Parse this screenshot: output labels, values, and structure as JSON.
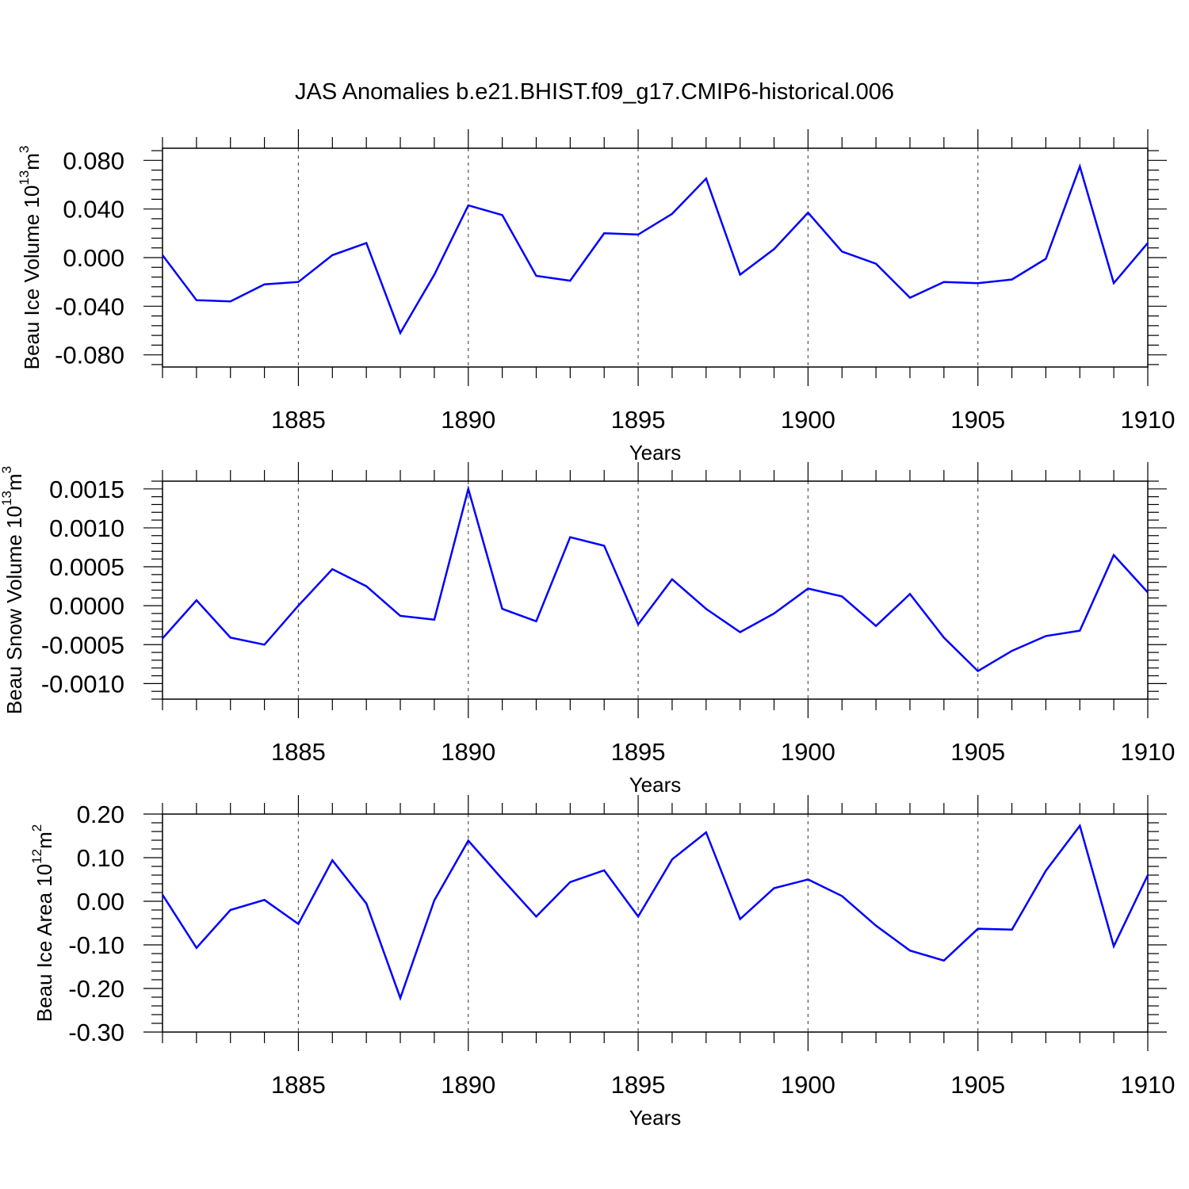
{
  "title": "JAS Anomalies b.e21.BHIST.f09_g17.CMIP6-historical.006",
  "colors": {
    "line": "#0000ff",
    "axis": "#000000",
    "grid": "#555555"
  },
  "chart_data": [
    {
      "type": "line",
      "ylabel": "Beau Ice Volume 10",
      "ylabel_exp": "13",
      "ylabel_unit": "m",
      "ylabel_unit_exp": "3",
      "xlabel": "Years",
      "xlim": [
        1881,
        1910
      ],
      "ylim": [
        -0.09,
        0.09
      ],
      "yticks": [
        -0.08,
        -0.04,
        0.0,
        0.04,
        0.08
      ],
      "ytick_labels": [
        "-0.080",
        "-0.040",
        "0.000",
        "0.040",
        "0.080"
      ],
      "yminor_step": 0.008,
      "xticks": [
        1885,
        1890,
        1895,
        1900,
        1905,
        1910
      ],
      "xtick_labels": [
        "1885",
        "1890",
        "1895",
        "1900",
        "1905",
        "1910"
      ],
      "x": [
        1881,
        1882,
        1883,
        1884,
        1885,
        1886,
        1887,
        1888,
        1889,
        1890,
        1891,
        1892,
        1893,
        1894,
        1895,
        1896,
        1897,
        1898,
        1899,
        1900,
        1901,
        1902,
        1903,
        1904,
        1905,
        1906,
        1907,
        1908,
        1909,
        1910
      ],
      "series": [
        {
          "name": "Beau Ice Volume",
          "values": [
            0.002,
            -0.035,
            -0.036,
            -0.022,
            -0.02,
            0.002,
            0.012,
            -0.062,
            -0.014,
            0.043,
            0.035,
            -0.015,
            -0.019,
            0.02,
            0.019,
            0.036,
            0.065,
            -0.014,
            0.007,
            0.037,
            0.005,
            -0.005,
            -0.033,
            -0.02,
            -0.021,
            -0.018,
            -0.001,
            0.075,
            -0.021,
            0.012
          ]
        }
      ]
    },
    {
      "type": "line",
      "ylabel": "Beau Snow Volume 10",
      "ylabel_exp": "13",
      "ylabel_unit": "m",
      "ylabel_unit_exp": "3",
      "xlabel": "Years",
      "xlim": [
        1881,
        1910
      ],
      "ylim": [
        -0.0012,
        0.0016
      ],
      "yticks": [
        -0.001,
        -0.0005,
        0.0,
        0.0005,
        0.001,
        0.0015
      ],
      "ytick_labels": [
        "-0.0010",
        "-0.0005",
        "0.0000",
        "0.0005",
        "0.0010",
        "0.0015"
      ],
      "yminor_step": 0.0001,
      "xticks": [
        1885,
        1890,
        1895,
        1900,
        1905,
        1910
      ],
      "xtick_labels": [
        "1885",
        "1890",
        "1895",
        "1900",
        "1905",
        "1910"
      ],
      "x": [
        1881,
        1882,
        1883,
        1884,
        1885,
        1886,
        1887,
        1888,
        1889,
        1890,
        1891,
        1892,
        1893,
        1894,
        1895,
        1896,
        1897,
        1898,
        1899,
        1900,
        1901,
        1902,
        1903,
        1904,
        1905,
        1906,
        1907,
        1908,
        1909,
        1910
      ],
      "series": [
        {
          "name": "Beau Snow Volume",
          "values": [
            -0.00042,
            7e-05,
            -0.00041,
            -0.0005,
            0.0,
            0.00047,
            0.00025,
            -0.00013,
            -0.00018,
            0.0015,
            -4e-05,
            -0.0002,
            0.00088,
            0.00077,
            -0.00024,
            0.00034,
            -4e-05,
            -0.00034,
            -0.0001,
            0.00022,
            0.00012,
            -0.00026,
            0.00015,
            -0.00041,
            -0.00084,
            -0.00058,
            -0.00039,
            -0.00032,
            0.00065,
            0.00017
          ]
        }
      ]
    },
    {
      "type": "line",
      "ylabel": "Beau Ice Area 10",
      "ylabel_exp": "12",
      "ylabel_unit": "m",
      "ylabel_unit_exp": "2",
      "xlabel": "Years",
      "xlim": [
        1881,
        1910
      ],
      "ylim": [
        -0.3,
        0.2
      ],
      "yticks": [
        -0.3,
        -0.2,
        -0.1,
        0.0,
        0.1,
        0.2
      ],
      "ytick_labels": [
        "-0.30",
        "-0.20",
        "-0.10",
        "0.00",
        "0.10",
        "0.20"
      ],
      "yminor_step": 0.02,
      "xticks": [
        1885,
        1890,
        1895,
        1900,
        1905,
        1910
      ],
      "xtick_labels": [
        "1885",
        "1890",
        "1895",
        "1900",
        "1905",
        "1910"
      ],
      "x": [
        1881,
        1882,
        1883,
        1884,
        1885,
        1886,
        1887,
        1888,
        1889,
        1890,
        1891,
        1892,
        1893,
        1894,
        1895,
        1896,
        1897,
        1898,
        1899,
        1900,
        1901,
        1902,
        1903,
        1904,
        1905,
        1906,
        1907,
        1908,
        1909,
        1910
      ],
      "series": [
        {
          "name": "Beau Ice Area",
          "values": [
            0.015,
            -0.107,
            -0.02,
            0.003,
            -0.052,
            0.094,
            -0.005,
            -0.222,
            0.002,
            0.139,
            0.051,
            -0.035,
            0.044,
            0.071,
            -0.035,
            0.096,
            0.158,
            -0.041,
            0.03,
            0.05,
            0.012,
            -0.056,
            -0.113,
            -0.136,
            -0.063,
            -0.065,
            0.07,
            0.173,
            -0.103,
            0.06
          ]
        }
      ]
    }
  ]
}
